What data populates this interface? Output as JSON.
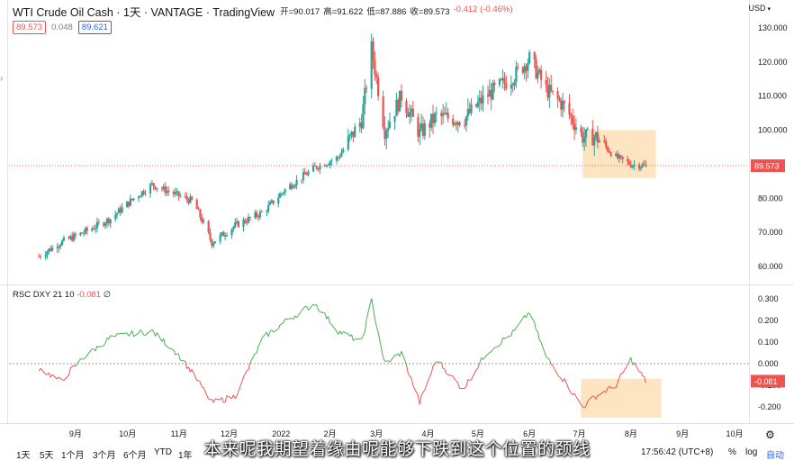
{
  "header": {
    "title": "WTI Crude Oil Cash",
    "interval": "1天",
    "exchange": "VANTAGE",
    "platform": "TradingView",
    "open_label": "开=90.017",
    "high_label": "高=91.622",
    "low_label": "低=87.886",
    "close_label": "收=89.573",
    "change": "-0.412 (-0.46%)"
  },
  "pills": {
    "bid": "89.573",
    "spread": "0.048",
    "ask": "89.621"
  },
  "currency": "USD",
  "indicator": {
    "label": "RSC DXY 21 10",
    "value": "-0.081",
    "extra": "∅"
  },
  "price_axis": {
    "ticks": [
      "130.000",
      "120.000",
      "110.000",
      "100.000",
      "90.000",
      "80.000",
      "70.000",
      "60.000"
    ],
    "last_label": "89.573"
  },
  "ind_axis": {
    "ticks": [
      "0.300",
      "0.200",
      "0.100",
      "0.000",
      "-0.100",
      "-0.200"
    ],
    "last_label": "-0.081"
  },
  "time_axis": [
    "9月",
    "10月",
    "11月",
    "12月",
    "2022",
    "2月",
    "3月",
    "4月",
    "5月",
    "6月",
    "7月",
    "8月",
    "9月",
    "10月"
  ],
  "range_buttons": [
    "1天",
    "5天",
    "1个月",
    "3个月",
    "6个月",
    "YTD",
    "1年"
  ],
  "status": {
    "time": "17:56:42 (UTC+8)",
    "percent": "%",
    "log": "log",
    "auto": "自动"
  },
  "subtitle": "本来呢我期望着缘由呢能够下跌到这个位置的颈线",
  "colors": {
    "up": "#26a69a",
    "down": "#ef5350",
    "highlight": "#fbe0b5",
    "line_up": "#4caf50",
    "line_down": "#ef5350"
  },
  "chart_data": [
    {
      "type": "candlestick",
      "title": "WTI Crude Oil Cash",
      "x": [
        "2021-08-19",
        "2021-09-01",
        "2021-09-15",
        "2021-10-01",
        "2021-10-15",
        "2021-10-26",
        "2021-11-10",
        "2021-11-20",
        "2021-12-01",
        "2021-12-15",
        "2022-01-01",
        "2022-01-15",
        "2022-02-01",
        "2022-02-15",
        "2022-03-01",
        "2022-03-07",
        "2022-03-15",
        "2022-03-25",
        "2022-04-05",
        "2022-04-15",
        "2022-05-01",
        "2022-05-15",
        "2022-06-01",
        "2022-06-10",
        "2022-06-20",
        "2022-07-01",
        "2022-07-12",
        "2022-07-20",
        "2022-08-01",
        "2022-08-10",
        "2022-08-19"
      ],
      "close": [
        63,
        67,
        70,
        74,
        80,
        84,
        81,
        79,
        67,
        72,
        76,
        83,
        89,
        92,
        103,
        124,
        100,
        110,
        99,
        104,
        103,
        110,
        116,
        121,
        112,
        107,
        98,
        98,
        92,
        90,
        89.573
      ],
      "ylim": [
        55,
        135
      ],
      "last_price": 89.573
    },
    {
      "type": "line",
      "title": "RSC DXY 21 10",
      "x": [
        "2021-08-19",
        "2021-09-01",
        "2021-09-15",
        "2021-10-01",
        "2021-10-15",
        "2021-10-26",
        "2021-11-10",
        "2021-11-20",
        "2021-12-01",
        "2021-12-15",
        "2022-01-01",
        "2022-01-15",
        "2022-02-01",
        "2022-02-15",
        "2022-03-01",
        "2022-03-07",
        "2022-03-15",
        "2022-03-25",
        "2022-04-05",
        "2022-04-15",
        "2022-05-01",
        "2022-05-15",
        "2022-06-01",
        "2022-06-10",
        "2022-06-20",
        "2022-07-01",
        "2022-07-12",
        "2022-07-20",
        "2022-08-01",
        "2022-08-10",
        "2022-08-19"
      ],
      "values": [
        -0.02,
        -0.08,
        0.03,
        0.12,
        0.14,
        0.15,
        0.05,
        -0.05,
        -0.18,
        -0.15,
        0.12,
        0.2,
        0.28,
        0.15,
        0.1,
        0.29,
        0.0,
        0.05,
        -0.18,
        0.02,
        -0.12,
        0.05,
        0.15,
        0.24,
        0.03,
        -0.08,
        -0.2,
        -0.15,
        -0.1,
        0.02,
        -0.081
      ],
      "ylim": [
        -0.25,
        0.33
      ],
      "last_value": -0.081
    }
  ]
}
